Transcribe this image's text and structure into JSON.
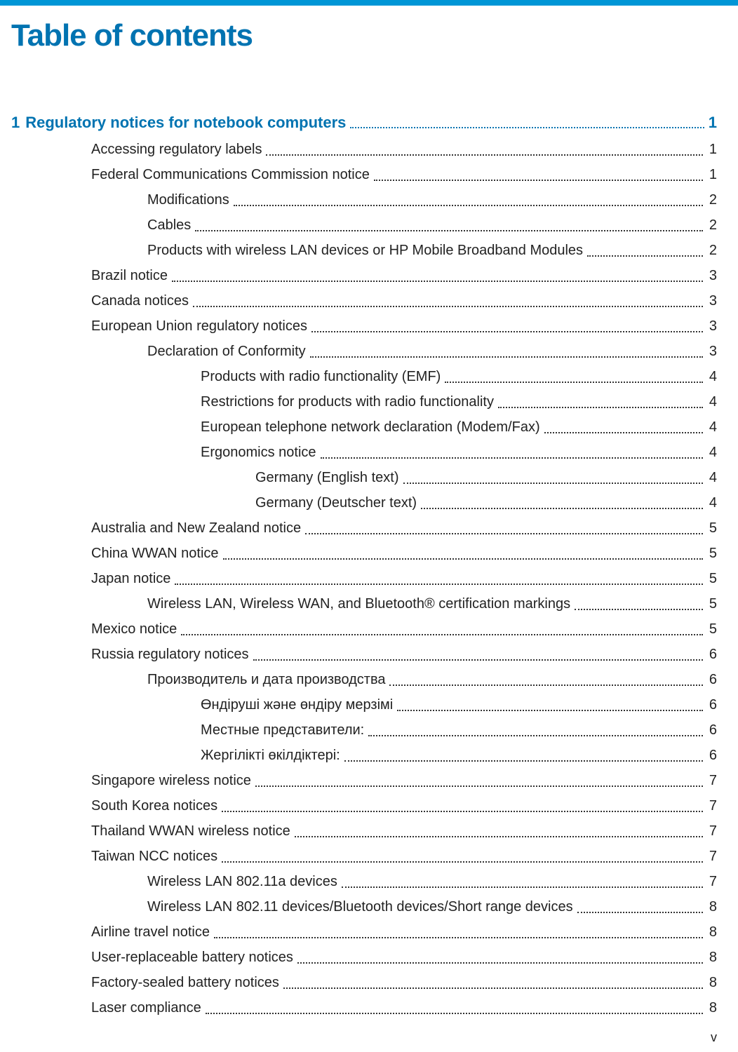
{
  "title": "Table of contents",
  "section": {
    "number": "1",
    "title": "Regulatory notices for notebook computers",
    "page": "1"
  },
  "entries": [
    {
      "label": "Accessing regulatory labels",
      "page": "1",
      "indent": 1
    },
    {
      "label": "Federal Communications Commission notice",
      "page": "1",
      "indent": 1
    },
    {
      "label": "Modifications",
      "page": "2",
      "indent": 2
    },
    {
      "label": "Cables",
      "page": "2",
      "indent": 2
    },
    {
      "label": "Products with wireless LAN devices or HP Mobile Broadband Modules",
      "page": "2",
      "indent": 2
    },
    {
      "label": "Brazil notice",
      "page": "3",
      "indent": 1
    },
    {
      "label": "Canada notices",
      "page": "3",
      "indent": 1
    },
    {
      "label": "European Union regulatory notices",
      "page": "3",
      "indent": 1
    },
    {
      "label": "Declaration of Conformity",
      "page": "3",
      "indent": 2
    },
    {
      "label": "Products with radio functionality (EMF)",
      "page": "4",
      "indent": 3
    },
    {
      "label": "Restrictions for products with radio functionality",
      "page": "4",
      "indent": 3
    },
    {
      "label": "European telephone network declaration (Modem/Fax)",
      "page": "4",
      "indent": 3
    },
    {
      "label": "Ergonomics notice",
      "page": "4",
      "indent": 3
    },
    {
      "label": "Germany (English text)",
      "page": "4",
      "indent": 4
    },
    {
      "label": "Germany (Deutscher text)",
      "page": "4",
      "indent": 4
    },
    {
      "label": "Australia and New Zealand notice",
      "page": "5",
      "indent": 1
    },
    {
      "label": "China WWAN notice",
      "page": "5",
      "indent": 1
    },
    {
      "label": "Japan notice",
      "page": "5",
      "indent": 1
    },
    {
      "label": "Wireless LAN, Wireless WAN, and Bluetooth® certification markings",
      "page": "5",
      "indent": 2
    },
    {
      "label": "Mexico notice",
      "page": "5",
      "indent": 1
    },
    {
      "label": "Russia regulatory notices",
      "page": "6",
      "indent": 1
    },
    {
      "label": "Производитель и дата производства",
      "page": "6",
      "indent": 2
    },
    {
      "label": "Өндіруші жəне өндіру мерзімі",
      "page": "6",
      "indent": 3
    },
    {
      "label": "Местные представители:",
      "page": "6",
      "indent": 3
    },
    {
      "label": "Жергілікті өкілдіктері:",
      "page": "6",
      "indent": 3
    },
    {
      "label": "Singapore wireless notice",
      "page": "7",
      "indent": 1
    },
    {
      "label": "South Korea notices",
      "page": "7",
      "indent": 1
    },
    {
      "label": "Thailand WWAN wireless notice",
      "page": "7",
      "indent": 1
    },
    {
      "label": "Taiwan NCC notices",
      "page": "7",
      "indent": 1
    },
    {
      "label": "Wireless LAN 802.11a devices",
      "page": "7",
      "indent": 2
    },
    {
      "label": "Wireless LAN 802.11 devices/Bluetooth devices/Short range devices",
      "page": "8",
      "indent": 2
    },
    {
      "label": "Airline travel notice",
      "page": "8",
      "indent": 1
    },
    {
      "label": "User-replaceable battery notices",
      "page": "8",
      "indent": 1
    },
    {
      "label": "Factory-sealed battery notices",
      "page": "8",
      "indent": 1
    },
    {
      "label": "Laser compliance",
      "page": "8",
      "indent": 1
    }
  ],
  "footerPage": "v",
  "colors": {
    "accent": "#0073b1",
    "bar": "#0096d6",
    "text": "#222"
  }
}
